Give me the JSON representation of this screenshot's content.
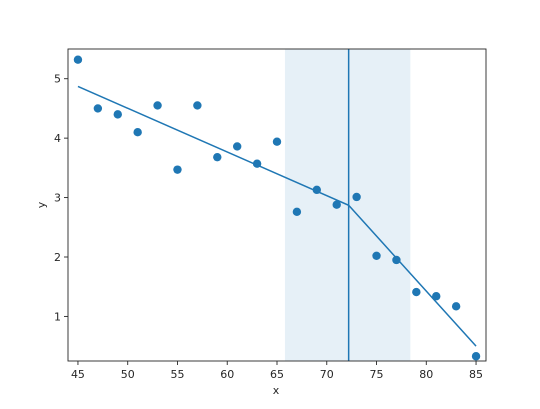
{
  "chart_data": {
    "type": "scatter",
    "xlabel": "x",
    "ylabel": "y",
    "xlim": [
      44.0,
      86.0
    ],
    "ylim": [
      0.25,
      5.5
    ],
    "xticks": [
      45,
      50,
      55,
      60,
      65,
      70,
      75,
      80,
      85
    ],
    "yticks": [
      1,
      2,
      3,
      4,
      5
    ],
    "grid": false,
    "points": {
      "x": [
        45,
        47,
        49,
        51,
        53,
        55,
        57,
        59,
        61,
        63,
        65,
        67,
        69,
        71,
        73,
        75,
        77,
        79,
        81,
        83,
        85
      ],
      "y": [
        5.32,
        4.5,
        4.4,
        4.1,
        4.55,
        3.47,
        4.55,
        3.68,
        3.86,
        3.57,
        3.94,
        2.76,
        3.13,
        2.88,
        3.01,
        2.02,
        1.95,
        1.41,
        1.34,
        1.17,
        0.33
      ]
    },
    "fit_line": {
      "x": [
        45,
        72.2,
        85
      ],
      "y": [
        4.87,
        2.87,
        0.5
      ]
    },
    "breakpoint": {
      "x": 72.2,
      "interval": [
        65.8,
        78.4
      ]
    },
    "colors": {
      "points": "#1f77b4",
      "line": "#1f77b4",
      "band": "#e6f0f7",
      "axis": "#262626"
    }
  }
}
